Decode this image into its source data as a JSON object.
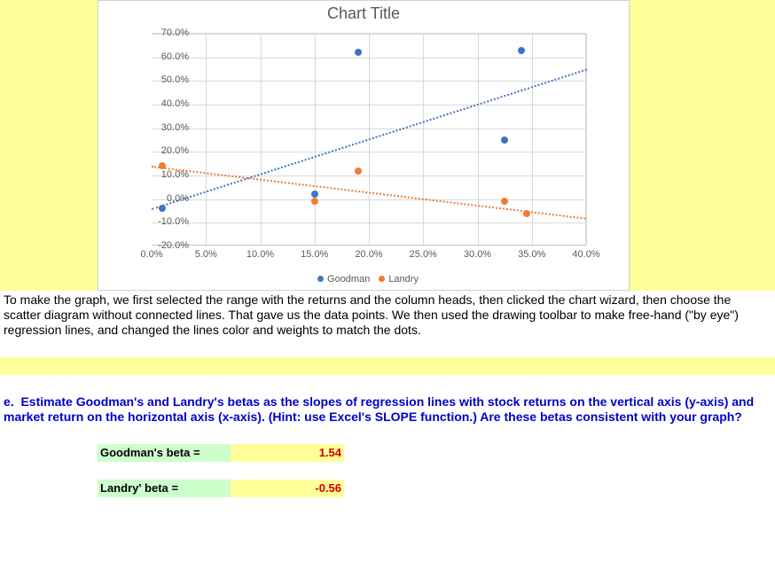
{
  "chart": {
    "type": "scatter",
    "title": "Chart Title",
    "title_fontsize": 18,
    "title_color": "#595959",
    "background_color": "#ffffff",
    "border_color": "#d0d0d0",
    "grid_color": "#d9d9d9",
    "axis_color": "#bfbfbf",
    "tick_font_color": "#595959",
    "tick_fontsize": 11,
    "xlim": [
      0,
      40
    ],
    "ylim": [
      -20,
      70
    ],
    "xtick_step": 5,
    "ytick_step": 10,
    "x_format_suffix": "%",
    "y_format_suffix": "%",
    "xticks": [
      "0.0%",
      "5.0%",
      "10.0%",
      "15.0%",
      "20.0%",
      "25.0%",
      "30.0%",
      "35.0%",
      "40.0%"
    ],
    "yticks": [
      "-20.0%",
      "-10.0%",
      "0.0%",
      "10.0%",
      "20.0%",
      "30.0%",
      "40.0%",
      "50.0%",
      "60.0%",
      "70.0%"
    ],
    "series": [
      {
        "name": "Goodman",
        "color": "#4472c4",
        "marker_size": 8,
        "marker_shape": "circle",
        "trendline": {
          "show": true,
          "style": "dotted",
          "width": 2,
          "slope": 1.54,
          "x_range": [
            0,
            40
          ],
          "y_range": [
            -4,
            55
          ]
        },
        "points": [
          {
            "x": 1.0,
            "y": -4.0
          },
          {
            "x": 15.0,
            "y": 2.0
          },
          {
            "x": 19.0,
            "y": 62.0
          },
          {
            "x": 32.5,
            "y": 25.0
          },
          {
            "x": 34.0,
            "y": 63.0
          }
        ]
      },
      {
        "name": "Landry",
        "color": "#ed7d31",
        "marker_size": 8,
        "marker_shape": "circle",
        "trendline": {
          "show": true,
          "style": "dotted",
          "width": 2,
          "slope": -0.56,
          "x_range": [
            0,
            40
          ],
          "y_range": [
            14,
            -8
          ]
        },
        "points": [
          {
            "x": 1.0,
            "y": 14.0
          },
          {
            "x": 15.0,
            "y": -1.0
          },
          {
            "x": 19.0,
            "y": 12.0
          },
          {
            "x": 32.5,
            "y": -1.0
          },
          {
            "x": 34.5,
            "y": -6.0
          }
        ]
      }
    ],
    "legend": {
      "position": "bottom",
      "items": [
        {
          "label": "Goodman",
          "color": "#4472c4"
        },
        {
          "label": "Landry",
          "color": "#ed7d31"
        }
      ]
    }
  },
  "paragraph": "To make the graph, we first selected the range with the returns and the column heads, then clicked the chart wizard, then choose the scatter diagram without connected lines.  That gave us the data points.  We then used the drawing toolbar to make free-hand (\"by eye\") regression lines, and changed the lines color and weights to match the dots.",
  "question": {
    "letter": "e.",
    "text": "Estimate Goodman's and Landry's betas as the slopes of regression lines with stock returns on the vertical axis (y-axis) and market return on the horizontal axis (x-axis). (Hint: use Excel's SLOPE function.)  Are these betas consistent with your graph?",
    "color": "#0000cc",
    "font_weight": "bold"
  },
  "betas": {
    "goodman": {
      "label": "Goodman's beta =",
      "value": "1.54",
      "label_bg": "#ccffcc",
      "value_bg": "#ffff99",
      "value_color": "#cc0000"
    },
    "landry": {
      "label": "Landry' beta  =",
      "value": "-0.56",
      "label_bg": "#ccffcc",
      "value_bg": "#ffff99",
      "value_color": "#cc0000"
    }
  },
  "highlight_bg": "#ffff99"
}
